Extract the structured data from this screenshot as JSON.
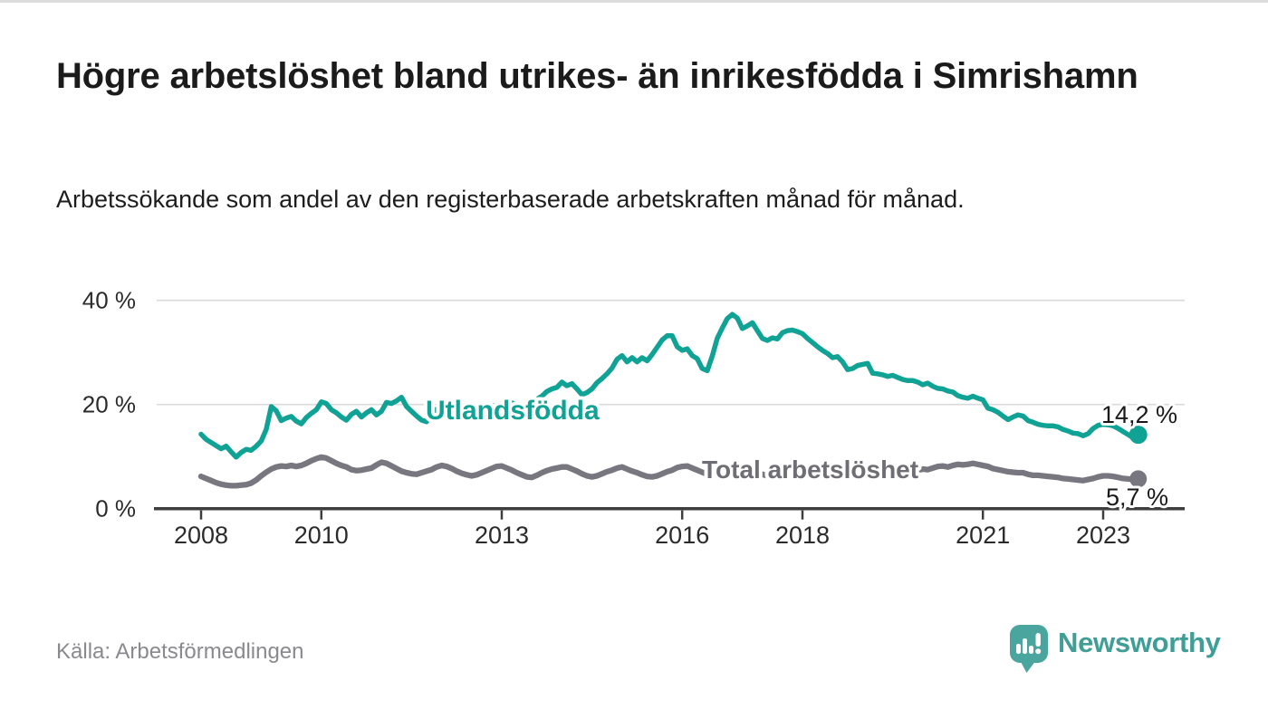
{
  "page": {
    "title": "Högre arbetslöshet bland utrikes- än inrikesfödda i Simrishamn",
    "subtitle": "Arbetssökande som andel av den registerbaserade arbetskraften månad för månad.",
    "source": "Källa: Arbetsförmedlingen",
    "brand": "Newsworthy"
  },
  "chart_data": {
    "type": "line",
    "title": "Högre arbetslöshet bland utrikes- än inrikesfödda i Simrishamn",
    "subtitle": "Arbetssökande som andel av den registerbaserade arbetskraften månad för månad.",
    "unit": "%",
    "period_start": "2008-01",
    "period_end": "2023-08",
    "points_per_year": 12,
    "ylim": [
      0,
      42
    ],
    "grid": "horizontal-only",
    "legend_position": "labels-on-lines",
    "y_ticks": [
      {
        "value": 0,
        "label": "0 %"
      },
      {
        "value": 20,
        "label": "20 %"
      },
      {
        "value": 40,
        "label": "40 %"
      }
    ],
    "x_tick_years": [
      2008,
      2010,
      2013,
      2016,
      2018,
      2021,
      2023
    ],
    "series": [
      {
        "name": "Utlandsfödda",
        "color": "#10a294",
        "end_value": 14.2,
        "end_label": "14,2 %",
        "values": [
          14.3,
          13.3,
          12.7,
          12.1,
          11.5,
          12.0,
          10.9,
          9.9,
          10.8,
          11.4,
          11.2,
          12.0,
          13.0,
          15.2,
          19.6,
          18.8,
          16.9,
          17.4,
          17.7,
          16.8,
          16.3,
          17.5,
          18.3,
          19.0,
          20.5,
          20.2,
          19.0,
          18.4,
          17.6,
          17.0,
          18.1,
          18.7,
          17.6,
          18.4,
          19.0,
          18.0,
          18.7,
          20.4,
          20.2,
          20.7,
          21.4,
          19.6,
          18.7,
          17.8,
          17.0,
          16.7,
          18.4,
          19.1,
          19.6,
          19.9,
          19.4,
          18.8,
          18.3,
          17.9,
          18.2,
          18.6,
          18.9,
          19.3,
          19.6,
          19.9,
          20.2,
          20.5,
          20.3,
          20.0,
          19.8,
          20.1,
          20.5,
          21.0,
          21.6,
          22.5,
          23.0,
          23.3,
          24.3,
          23.6,
          24.0,
          23.0,
          21.9,
          22.3,
          23.0,
          24.2,
          25.0,
          25.9,
          27.0,
          28.7,
          29.4,
          28.2,
          29.0,
          28.2,
          29.0,
          28.4,
          29.6,
          31.0,
          32.4,
          33.2,
          33.2,
          31.1,
          30.4,
          30.7,
          29.4,
          28.8,
          26.9,
          26.5,
          29.3,
          32.7,
          34.7,
          36.5,
          37.3,
          36.6,
          34.6,
          35.1,
          35.7,
          34.2,
          32.7,
          32.3,
          32.8,
          32.6,
          33.8,
          34.2,
          34.3,
          34.0,
          33.6,
          32.7,
          31.9,
          31.1,
          30.4,
          29.8,
          29.0,
          29.2,
          28.2,
          26.7,
          26.9,
          27.5,
          27.7,
          27.9,
          26.0,
          25.9,
          25.7,
          25.4,
          25.6,
          25.2,
          24.8,
          24.6,
          24.6,
          24.3,
          23.8,
          24.1,
          23.5,
          23.1,
          23.0,
          22.6,
          22.4,
          21.7,
          21.4,
          21.2,
          21.6,
          21.2,
          20.9,
          19.3,
          19.0,
          18.5,
          17.8,
          17.1,
          17.6,
          18.0,
          17.8,
          16.9,
          16.6,
          16.2,
          16.0,
          15.9,
          15.9,
          15.7,
          15.2,
          14.9,
          14.5,
          14.4,
          14.0,
          14.4,
          15.4,
          16.0,
          16.2,
          16.1,
          15.9,
          15.4,
          14.8,
          14.2,
          13.6,
          14.2
        ]
      },
      {
        "name": "Total arbetslöshet",
        "color": "#787780",
        "end_value": 5.7,
        "end_label": "5,7 %",
        "values": [
          6.2,
          5.8,
          5.4,
          5.0,
          4.7,
          4.5,
          4.4,
          4.4,
          4.5,
          4.6,
          4.9,
          5.5,
          6.3,
          7.0,
          7.6,
          8.0,
          8.2,
          8.1,
          8.3,
          8.1,
          8.3,
          8.7,
          9.2,
          9.6,
          9.9,
          9.7,
          9.2,
          8.7,
          8.3,
          8.0,
          7.5,
          7.3,
          7.4,
          7.6,
          7.8,
          8.4,
          8.9,
          8.7,
          8.2,
          7.7,
          7.2,
          6.9,
          6.7,
          6.6,
          6.9,
          7.2,
          7.5,
          8.0,
          8.3,
          8.1,
          7.7,
          7.2,
          6.8,
          6.5,
          6.3,
          6.5,
          6.9,
          7.3,
          7.7,
          8.1,
          8.2,
          7.8,
          7.4,
          6.9,
          6.5,
          6.1,
          6.0,
          6.4,
          6.9,
          7.3,
          7.6,
          7.8,
          8.0,
          8.0,
          7.6,
          7.2,
          6.7,
          6.3,
          6.1,
          6.3,
          6.7,
          7.1,
          7.4,
          7.8,
          8.0,
          7.6,
          7.2,
          6.9,
          6.5,
          6.2,
          6.1,
          6.3,
          6.7,
          7.1,
          7.4,
          7.9,
          8.1,
          8.2,
          7.8,
          7.4,
          7.0,
          6.6,
          6.4,
          6.6,
          6.9,
          7.2,
          7.5,
          7.8,
          8.0,
          7.8,
          7.4,
          7.0,
          6.6,
          6.3,
          6.2,
          6.4,
          6.7,
          7.0,
          7.3,
          7.6,
          7.8,
          7.6,
          7.2,
          6.8,
          6.4,
          6.1,
          6.0,
          6.2,
          6.5,
          6.8,
          7.1,
          7.4,
          7.6,
          7.4,
          7.1,
          6.8,
          6.5,
          6.3,
          6.4,
          6.6,
          6.8,
          7.0,
          7.2,
          7.4,
          7.6,
          7.5,
          7.8,
          8.1,
          8.2,
          8.0,
          8.3,
          8.5,
          8.4,
          8.5,
          8.7,
          8.5,
          8.3,
          8.1,
          7.7,
          7.5,
          7.3,
          7.1,
          7.0,
          6.9,
          6.9,
          6.6,
          6.4,
          6.4,
          6.3,
          6.2,
          6.1,
          6.0,
          5.8,
          5.7,
          5.6,
          5.5,
          5.4,
          5.6,
          5.8,
          6.1,
          6.3,
          6.3,
          6.2,
          6.0,
          5.8,
          5.7,
          5.6,
          5.7
        ]
      }
    ],
    "source": "Källa: Arbetsförmedlingen"
  },
  "colors": {
    "accent_teal": "#10a294",
    "line_gray": "#787780",
    "axis": "#3e3e3e",
    "gridline": "#dadada",
    "tick_label": "#2b2b2b",
    "brand_teal": "#4aa59e"
  }
}
